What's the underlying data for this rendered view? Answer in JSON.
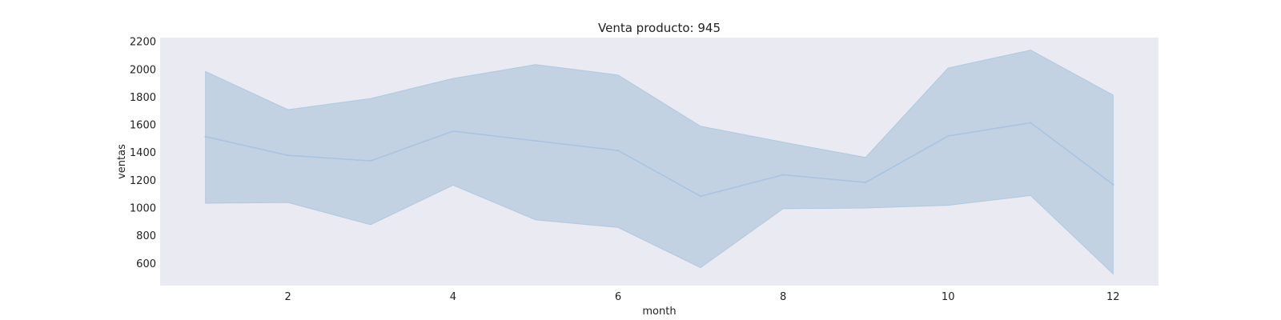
{
  "chart_data": {
    "type": "line",
    "title": "Venta producto: 945",
    "xlabel": "month",
    "ylabel": "ventas",
    "x": [
      1,
      2,
      3,
      4,
      5,
      6,
      7,
      8,
      9,
      10,
      11,
      12
    ],
    "series": [
      {
        "values": [
          1515,
          1380,
          1340,
          1555,
          1485,
          1415,
          1085,
          1240,
          1185,
          1520,
          1615,
          1170
        ],
        "upper": [
          1985,
          1710,
          1790,
          1935,
          2035,
          1960,
          1590,
          1475,
          1365,
          2010,
          2140,
          1815
        ],
        "lower": [
          1035,
          1040,
          880,
          1165,
          915,
          860,
          570,
          995,
          1000,
          1020,
          1090,
          525
        ]
      }
    ],
    "xticks": [
      2,
      4,
      6,
      8,
      10,
      12
    ],
    "yticks": [
      600,
      800,
      1000,
      1200,
      1400,
      1600,
      1800,
      2000,
      2200
    ],
    "xlim": [
      0.45,
      12.55
    ],
    "ylim": [
      440,
      2230
    ],
    "grid": false,
    "colors": {
      "plot_background": "#eaeaf2",
      "line": "#a8c4e0",
      "band_fill": "#c2d2e3",
      "band_edge": "#b0c8e0"
    }
  }
}
